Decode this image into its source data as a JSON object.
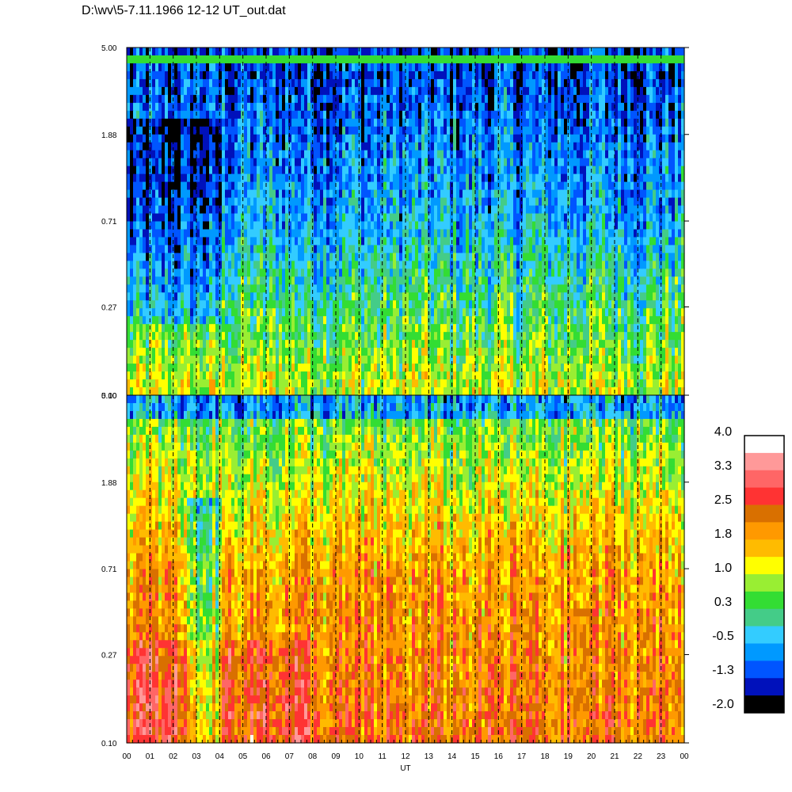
{
  "title": "D:\\wv\\5-7.11.1966  12-12 UT_out.dat",
  "chart_data": [
    {
      "type": "heatmap",
      "panel": "top",
      "xlabel": "",
      "x_ticks": [
        "00",
        "01",
        "02",
        "03",
        "04",
        "05",
        "06",
        "07",
        "08",
        "09",
        "10",
        "11",
        "12",
        "13",
        "14",
        "15",
        "16",
        "17",
        "18",
        "19",
        "20",
        "21",
        "22",
        "23",
        "00"
      ],
      "y_ticks": [
        "5.00",
        "1.88",
        "0.71",
        "0.27",
        "0.10"
      ],
      "y_scale": "log",
      "ylim": [
        0.1,
        5.0
      ],
      "vertical_dashed_lines_at_hours": [
        1,
        2,
        3,
        4,
        5,
        6,
        7,
        8,
        9,
        10,
        11,
        12,
        13,
        14,
        15,
        16,
        17,
        18,
        19,
        20,
        21,
        22,
        23
      ],
      "dominant_levels": {
        "high_y": -1.3,
        "mid_y": -0.5,
        "low_y": 1.0
      }
    },
    {
      "type": "heatmap",
      "panel": "bottom",
      "xlabel": "UT",
      "x_ticks": [
        "00",
        "01",
        "02",
        "03",
        "04",
        "05",
        "06",
        "07",
        "08",
        "09",
        "10",
        "11",
        "12",
        "13",
        "14",
        "15",
        "16",
        "17",
        "18",
        "19",
        "20",
        "21",
        "22",
        "23",
        "00"
      ],
      "y_ticks": [
        "5.00",
        "1.88",
        "0.71",
        "0.27",
        "0.10"
      ],
      "y_scale": "log",
      "ylim": [
        0.1,
        5.0
      ],
      "vertical_dashed_lines_at_hours": [
        1,
        2,
        3,
        4,
        5,
        6,
        7,
        8,
        9,
        10,
        11,
        12,
        13,
        14,
        15,
        16,
        17,
        18,
        19,
        20,
        21,
        22,
        23
      ],
      "dominant_levels": {
        "high_y": 0.3,
        "mid_y": 1.8,
        "low_y": 2.2
      }
    }
  ],
  "colorbar": {
    "labels": [
      "4.0",
      "3.3",
      "2.5",
      "1.8",
      "1.0",
      "0.3",
      "-0.5",
      "-1.3",
      "-2.0"
    ],
    "colors": [
      "#ffffff",
      "#ff9999",
      "#ff6666",
      "#ff3333",
      "#d97000",
      "#ff9900",
      "#ffbb00",
      "#ffff00",
      "#99ee33",
      "#33dd33",
      "#44cc88",
      "#33ccff",
      "#0099ff",
      "#0055ff",
      "#0011bb",
      "#000000"
    ]
  }
}
